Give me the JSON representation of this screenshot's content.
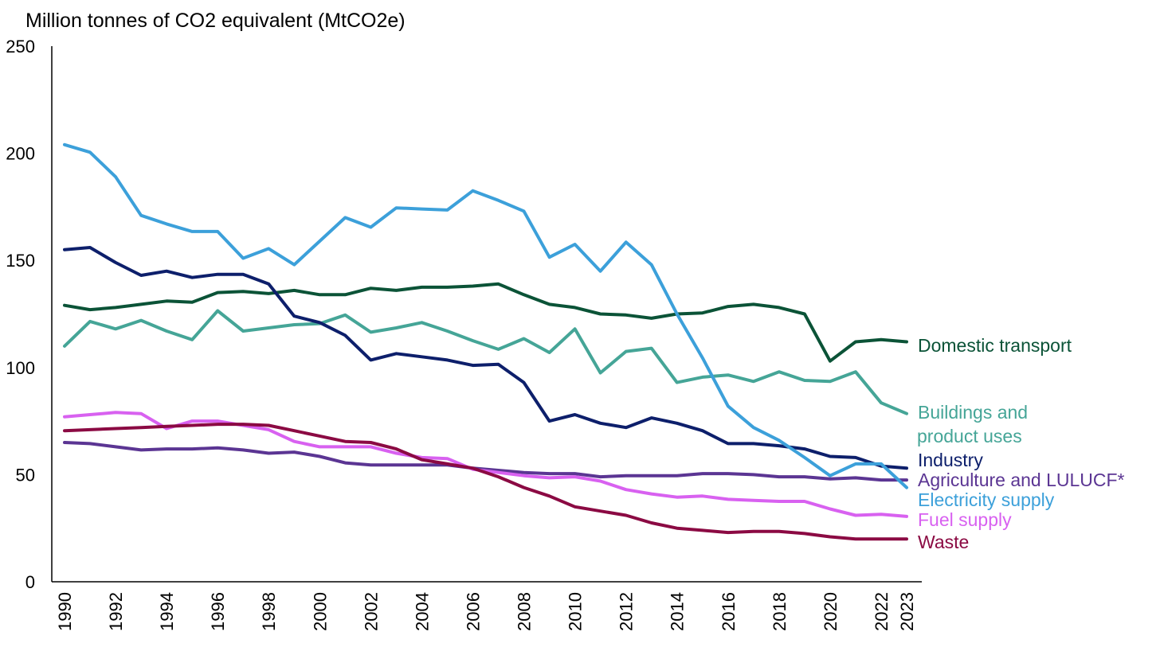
{
  "chart_data": {
    "type": "line",
    "ylabel": "Million tonnes of CO2 equivalent (MtCO2e)",
    "title": "",
    "xlabel": "",
    "ylim": [
      0,
      250
    ],
    "yticks": [
      0,
      50,
      100,
      150,
      200,
      250
    ],
    "xlabels": [
      "1990",
      "1992",
      "1994",
      "1996",
      "1998",
      "2000",
      "2002",
      "2004",
      "2006",
      "2008",
      "2010",
      "2012",
      "2014",
      "2016",
      "2018",
      "2020",
      "2022",
      "2023"
    ],
    "grid": false,
    "legend": "right (labels at line ends)",
    "x": [
      1990,
      1991,
      1992,
      1993,
      1994,
      1995,
      1996,
      1997,
      1998,
      1999,
      2000,
      2001,
      2002,
      2003,
      2004,
      2005,
      2006,
      2007,
      2008,
      2009,
      2010,
      2011,
      2012,
      2013,
      2014,
      2015,
      2016,
      2017,
      2018,
      2019,
      2020,
      2021,
      2022,
      2023
    ],
    "series": [
      {
        "name": "Domestic transport",
        "color": "#0b5337",
        "label_lines": [
          "Domestic transport"
        ],
        "values": [
          129,
          127,
          128,
          129.5,
          131,
          130.5,
          135,
          135.5,
          134.5,
          136,
          134,
          134,
          137,
          136,
          137.5,
          137.5,
          138,
          139,
          134,
          129.5,
          128,
          125,
          124.5,
          123,
          125,
          125.5,
          128.5,
          129.5,
          128,
          125,
          103,
          112,
          113,
          112
        ]
      },
      {
        "name": "Buildings and product uses",
        "color": "#45a597",
        "label_lines": [
          "Buildings and",
          "product uses"
        ],
        "values": [
          110,
          121.5,
          118,
          122,
          117,
          113,
          126.5,
          117,
          118.5,
          120,
          120.5,
          124.5,
          116.5,
          118.5,
          121,
          117,
          112.5,
          108.5,
          113.5,
          107,
          118,
          97.5,
          107.5,
          109,
          93,
          95.5,
          96.5,
          93.5,
          98,
          94,
          93.5,
          98,
          83.5,
          78.5
        ]
      },
      {
        "name": "Industry",
        "color": "#0d1f6b",
        "label_lines": [
          "Industry"
        ],
        "values": [
          155,
          156,
          149,
          143,
          145,
          142,
          143.5,
          143.5,
          139,
          124,
          121,
          115,
          103.5,
          106.5,
          105,
          103.5,
          101,
          101.5,
          93,
          75,
          78,
          74,
          72,
          76.5,
          74,
          70.5,
          64.5,
          64.5,
          63.5,
          62,
          58.5,
          58,
          54,
          53
        ]
      },
      {
        "name": "Agriculture and LULUCF*",
        "color": "#5b3593",
        "label_lines": [
          "Agriculture and LULUCF*"
        ],
        "values": [
          65,
          64.5,
          63,
          61.5,
          62,
          62,
          62.5,
          61.5,
          60,
          60.5,
          58.5,
          55.5,
          54.5,
          54.5,
          54.5,
          54.5,
          53,
          52,
          51,
          50.5,
          50.5,
          49,
          49.5,
          49.5,
          49.5,
          50.5,
          50.5,
          50,
          49,
          49,
          48,
          48.5,
          47.5,
          47.5
        ]
      },
      {
        "name": "Electricity supply",
        "color": "#3ca0da",
        "label_lines": [
          "Electricity supply"
        ],
        "values": [
          204,
          200.5,
          189,
          171,
          167,
          163.5,
          163.5,
          151,
          155.5,
          148,
          159,
          170,
          165.5,
          174.5,
          174,
          173.5,
          182.5,
          178,
          173,
          151.5,
          157.5,
          145,
          158.5,
          148,
          125,
          104.5,
          82,
          72,
          66,
          58,
          49.5,
          55,
          55,
          44
        ]
      },
      {
        "name": "Fuel supply",
        "color": "#d861f0",
        "label_lines": [
          "Fuel supply"
        ],
        "values": [
          77,
          78,
          79,
          78.5,
          71.5,
          75,
          75,
          73,
          71,
          65.5,
          63,
          63,
          63,
          60,
          58,
          57.5,
          52.5,
          51,
          49.5,
          48.5,
          49,
          47,
          43,
          41,
          39.5,
          40,
          38.5,
          38,
          37.5,
          37.5,
          34,
          31,
          31.5,
          30.5
        ]
      },
      {
        "name": "Waste",
        "color": "#8b0a43",
        "label_lines": [
          "Waste"
        ],
        "values": [
          70.5,
          71,
          71.5,
          72,
          72.5,
          73,
          73.5,
          73.5,
          73,
          70.5,
          68,
          65.5,
          65,
          62,
          57,
          55,
          53,
          49,
          44,
          40,
          35,
          33,
          31,
          27.5,
          25,
          24,
          23,
          23.5,
          23.5,
          22.5,
          21,
          20,
          20,
          20
        ]
      }
    ]
  }
}
